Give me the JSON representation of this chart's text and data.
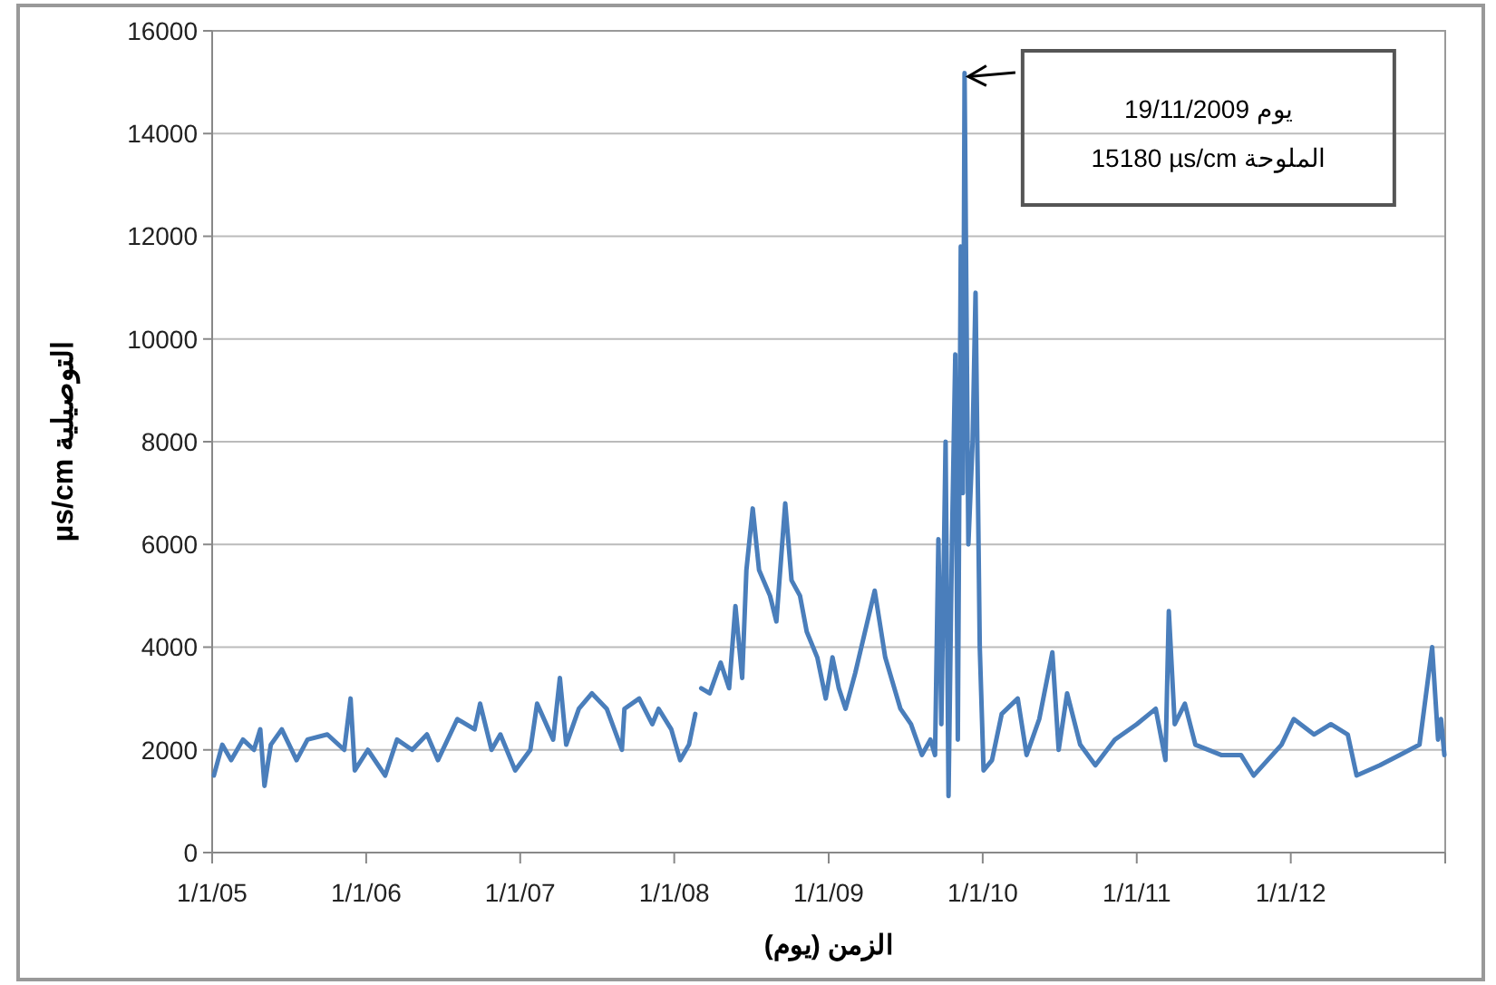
{
  "chart_data": {
    "type": "line",
    "xlabel": "الزمن (يوم)",
    "ylabel": "µs/cm التوصيلية",
    "xlim": [
      "2005-01-01",
      "2013-01-01"
    ],
    "xticks": [
      {
        "value": "2005-01-01",
        "label": "1/1/05"
      },
      {
        "value": "2006-01-01",
        "label": "1/1/06"
      },
      {
        "value": "2007-01-01",
        "label": "1/1/07"
      },
      {
        "value": "2008-01-01",
        "label": "1/1/08"
      },
      {
        "value": "2009-01-01",
        "label": "1/1/09"
      },
      {
        "value": "2010-01-01",
        "label": "1/1/10"
      },
      {
        "value": "2011-01-01",
        "label": "1/1/11"
      },
      {
        "value": "2012-01-01",
        "label": "1/1/12"
      },
      {
        "value": "2013-01-01",
        "label": null
      }
    ],
    "ylim": [
      0,
      16000
    ],
    "yticks": [
      0,
      2000,
      4000,
      6000,
      8000,
      10000,
      12000,
      14000,
      16000
    ],
    "grid": "y",
    "marker": "none",
    "line_style": "solid",
    "annotations": [
      "19/11/2009 يوم\n15180 µs/cm الملوحة"
    ],
    "x": [
      "2005-01-05",
      "2005-01-25",
      "2005-02-15",
      "2005-03-15",
      "2005-04-10",
      "2005-04-25",
      "2005-05-05",
      "2005-05-20",
      "2005-06-15",
      "2005-07-20",
      "2005-08-15",
      "2005-10-01",
      "2005-11-10",
      "2005-11-25",
      "2005-12-05",
      "2006-01-05",
      "2006-02-15",
      "2006-03-15",
      "2006-04-20",
      "2006-05-25",
      "2006-06-20",
      "2006-08-05",
      "2006-09-15",
      "2006-09-28",
      "2006-10-25",
      "2006-11-15",
      "2006-12-20",
      "2007-01-25",
      "2007-02-10",
      "2007-03-20",
      "2007-04-05",
      "2007-04-20",
      "2007-05-20",
      "2007-06-20",
      "2007-07-25",
      "2007-08-30",
      "2007-09-05",
      "2007-10-10",
      "2007-11-10",
      "2007-11-25",
      "2007-12-25",
      "2008-01-15",
      "2008-02-05",
      "2008-02-20",
      "2008-02-28",
      "2008-03-05",
      "2008-03-25",
      "2008-04-20",
      "2008-05-10",
      "2008-05-25",
      "2008-06-10",
      "2008-06-20",
      "2008-07-05",
      "2008-07-20",
      "2008-08-15",
      "2008-08-30",
      "2008-09-20",
      "2008-10-05",
      "2008-10-25",
      "2008-11-10",
      "2008-12-05",
      "2008-12-25",
      "2009-01-10",
      "2009-01-25",
      "2009-02-10",
      "2009-03-05",
      "2009-04-20",
      "2009-05-15",
      "2009-06-20",
      "2009-07-15",
      "2009-08-10",
      "2009-08-30",
      "2009-09-10",
      "2009-09-18",
      "2009-09-25",
      "2009-10-05",
      "2009-10-12",
      "2009-10-20",
      "2009-10-28",
      "2009-11-03",
      "2009-11-10",
      "2009-11-15",
      "2009-11-19",
      "2009-11-28",
      "2009-12-08",
      "2009-12-15",
      "2009-12-25",
      "2010-01-03",
      "2010-01-23",
      "2010-02-15",
      "2010-03-25",
      "2010-04-15",
      "2010-05-15",
      "2010-06-15",
      "2010-06-30",
      "2010-07-20",
      "2010-08-20",
      "2010-09-25",
      "2010-11-10",
      "2011-01-01",
      "2011-02-15",
      "2011-03-10",
      "2011-03-18",
      "2011-04-01",
      "2011-04-25",
      "2011-05-20",
      "2011-07-20",
      "2011-09-05",
      "2011-10-05",
      "2011-12-10",
      "2012-01-08",
      "2012-02-25",
      "2012-04-05",
      "2012-05-15",
      "2012-06-05",
      "2012-07-30",
      "2012-09-15",
      "2012-11-01",
      "2012-12-01",
      "2012-12-15",
      "2012-12-22",
      "2012-12-30"
    ],
    "series": [
      {
        "color": "#4a7ebb",
        "values": [
          1500,
          2100,
          1800,
          2200,
          2000,
          2400,
          1300,
          2100,
          2400,
          1800,
          2200,
          2300,
          2000,
          3000,
          1600,
          2000,
          1500,
          2200,
          2000,
          2300,
          1800,
          2600,
          2400,
          2900,
          2000,
          2300,
          1600,
          2000,
          2900,
          2200,
          3400,
          2100,
          2800,
          3100,
          2800,
          2000,
          2800,
          3000,
          2500,
          2800,
          2400,
          1800,
          2100,
          2700,
          null,
          3200,
          3100,
          3700,
          3200,
          4800,
          3400,
          5500,
          6700,
          5500,
          5000,
          4500,
          6800,
          5300,
          5000,
          4300,
          3800,
          3000,
          3800,
          3200,
          2800,
          3500,
          5100,
          3800,
          2800,
          2500,
          1900,
          2200,
          1900,
          6100,
          2500,
          8000,
          1100,
          6000,
          9700,
          2200,
          11800,
          7000,
          15180,
          6000,
          8000,
          10900,
          4000,
          1600,
          1800,
          2700,
          3000,
          1900,
          2600,
          3900,
          2000,
          3100,
          2100,
          1700,
          2200,
          2500,
          2800,
          1800,
          4700,
          2500,
          2900,
          2100,
          1900,
          1900,
          1500,
          2100,
          2600,
          2300,
          2500,
          2300,
          1500,
          1700,
          1900,
          2100,
          4000,
          2200,
          2600,
          1900
        ]
      }
    ]
  }
}
